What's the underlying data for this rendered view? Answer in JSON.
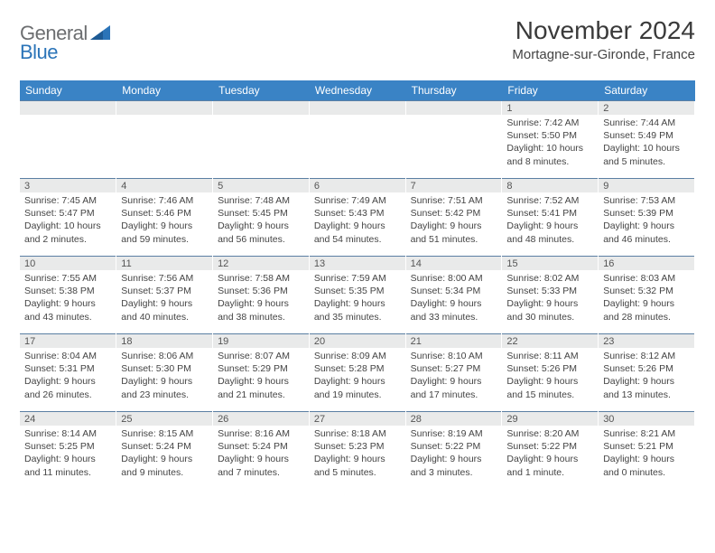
{
  "brand": {
    "text1": "General",
    "text2": "Blue"
  },
  "title": "November 2024",
  "location": "Mortagne-sur-Gironde, France",
  "colors": {
    "header_bg": "#3a83c5",
    "header_text": "#ffffff",
    "daynum_bg": "#e9eaea",
    "row_border": "#5b7fa3",
    "body_text": "#444444",
    "logo_gray": "#6c6e70",
    "logo_blue": "#2b74b8"
  },
  "weekdays": [
    "Sunday",
    "Monday",
    "Tuesday",
    "Wednesday",
    "Thursday",
    "Friday",
    "Saturday"
  ],
  "weeks": [
    [
      {
        "n": "",
        "sr": "",
        "ss": "",
        "dl": ""
      },
      {
        "n": "",
        "sr": "",
        "ss": "",
        "dl": ""
      },
      {
        "n": "",
        "sr": "",
        "ss": "",
        "dl": ""
      },
      {
        "n": "",
        "sr": "",
        "ss": "",
        "dl": ""
      },
      {
        "n": "",
        "sr": "",
        "ss": "",
        "dl": ""
      },
      {
        "n": "1",
        "sr": "Sunrise: 7:42 AM",
        "ss": "Sunset: 5:50 PM",
        "dl": "Daylight: 10 hours and 8 minutes."
      },
      {
        "n": "2",
        "sr": "Sunrise: 7:44 AM",
        "ss": "Sunset: 5:49 PM",
        "dl": "Daylight: 10 hours and 5 minutes."
      }
    ],
    [
      {
        "n": "3",
        "sr": "Sunrise: 7:45 AM",
        "ss": "Sunset: 5:47 PM",
        "dl": "Daylight: 10 hours and 2 minutes."
      },
      {
        "n": "4",
        "sr": "Sunrise: 7:46 AM",
        "ss": "Sunset: 5:46 PM",
        "dl": "Daylight: 9 hours and 59 minutes."
      },
      {
        "n": "5",
        "sr": "Sunrise: 7:48 AM",
        "ss": "Sunset: 5:45 PM",
        "dl": "Daylight: 9 hours and 56 minutes."
      },
      {
        "n": "6",
        "sr": "Sunrise: 7:49 AM",
        "ss": "Sunset: 5:43 PM",
        "dl": "Daylight: 9 hours and 54 minutes."
      },
      {
        "n": "7",
        "sr": "Sunrise: 7:51 AM",
        "ss": "Sunset: 5:42 PM",
        "dl": "Daylight: 9 hours and 51 minutes."
      },
      {
        "n": "8",
        "sr": "Sunrise: 7:52 AM",
        "ss": "Sunset: 5:41 PM",
        "dl": "Daylight: 9 hours and 48 minutes."
      },
      {
        "n": "9",
        "sr": "Sunrise: 7:53 AM",
        "ss": "Sunset: 5:39 PM",
        "dl": "Daylight: 9 hours and 46 minutes."
      }
    ],
    [
      {
        "n": "10",
        "sr": "Sunrise: 7:55 AM",
        "ss": "Sunset: 5:38 PM",
        "dl": "Daylight: 9 hours and 43 minutes."
      },
      {
        "n": "11",
        "sr": "Sunrise: 7:56 AM",
        "ss": "Sunset: 5:37 PM",
        "dl": "Daylight: 9 hours and 40 minutes."
      },
      {
        "n": "12",
        "sr": "Sunrise: 7:58 AM",
        "ss": "Sunset: 5:36 PM",
        "dl": "Daylight: 9 hours and 38 minutes."
      },
      {
        "n": "13",
        "sr": "Sunrise: 7:59 AM",
        "ss": "Sunset: 5:35 PM",
        "dl": "Daylight: 9 hours and 35 minutes."
      },
      {
        "n": "14",
        "sr": "Sunrise: 8:00 AM",
        "ss": "Sunset: 5:34 PM",
        "dl": "Daylight: 9 hours and 33 minutes."
      },
      {
        "n": "15",
        "sr": "Sunrise: 8:02 AM",
        "ss": "Sunset: 5:33 PM",
        "dl": "Daylight: 9 hours and 30 minutes."
      },
      {
        "n": "16",
        "sr": "Sunrise: 8:03 AM",
        "ss": "Sunset: 5:32 PM",
        "dl": "Daylight: 9 hours and 28 minutes."
      }
    ],
    [
      {
        "n": "17",
        "sr": "Sunrise: 8:04 AM",
        "ss": "Sunset: 5:31 PM",
        "dl": "Daylight: 9 hours and 26 minutes."
      },
      {
        "n": "18",
        "sr": "Sunrise: 8:06 AM",
        "ss": "Sunset: 5:30 PM",
        "dl": "Daylight: 9 hours and 23 minutes."
      },
      {
        "n": "19",
        "sr": "Sunrise: 8:07 AM",
        "ss": "Sunset: 5:29 PM",
        "dl": "Daylight: 9 hours and 21 minutes."
      },
      {
        "n": "20",
        "sr": "Sunrise: 8:09 AM",
        "ss": "Sunset: 5:28 PM",
        "dl": "Daylight: 9 hours and 19 minutes."
      },
      {
        "n": "21",
        "sr": "Sunrise: 8:10 AM",
        "ss": "Sunset: 5:27 PM",
        "dl": "Daylight: 9 hours and 17 minutes."
      },
      {
        "n": "22",
        "sr": "Sunrise: 8:11 AM",
        "ss": "Sunset: 5:26 PM",
        "dl": "Daylight: 9 hours and 15 minutes."
      },
      {
        "n": "23",
        "sr": "Sunrise: 8:12 AM",
        "ss": "Sunset: 5:26 PM",
        "dl": "Daylight: 9 hours and 13 minutes."
      }
    ],
    [
      {
        "n": "24",
        "sr": "Sunrise: 8:14 AM",
        "ss": "Sunset: 5:25 PM",
        "dl": "Daylight: 9 hours and 11 minutes."
      },
      {
        "n": "25",
        "sr": "Sunrise: 8:15 AM",
        "ss": "Sunset: 5:24 PM",
        "dl": "Daylight: 9 hours and 9 minutes."
      },
      {
        "n": "26",
        "sr": "Sunrise: 8:16 AM",
        "ss": "Sunset: 5:24 PM",
        "dl": "Daylight: 9 hours and 7 minutes."
      },
      {
        "n": "27",
        "sr": "Sunrise: 8:18 AM",
        "ss": "Sunset: 5:23 PM",
        "dl": "Daylight: 9 hours and 5 minutes."
      },
      {
        "n": "28",
        "sr": "Sunrise: 8:19 AM",
        "ss": "Sunset: 5:22 PM",
        "dl": "Daylight: 9 hours and 3 minutes."
      },
      {
        "n": "29",
        "sr": "Sunrise: 8:20 AM",
        "ss": "Sunset: 5:22 PM",
        "dl": "Daylight: 9 hours and 1 minute."
      },
      {
        "n": "30",
        "sr": "Sunrise: 8:21 AM",
        "ss": "Sunset: 5:21 PM",
        "dl": "Daylight: 9 hours and 0 minutes."
      }
    ]
  ]
}
